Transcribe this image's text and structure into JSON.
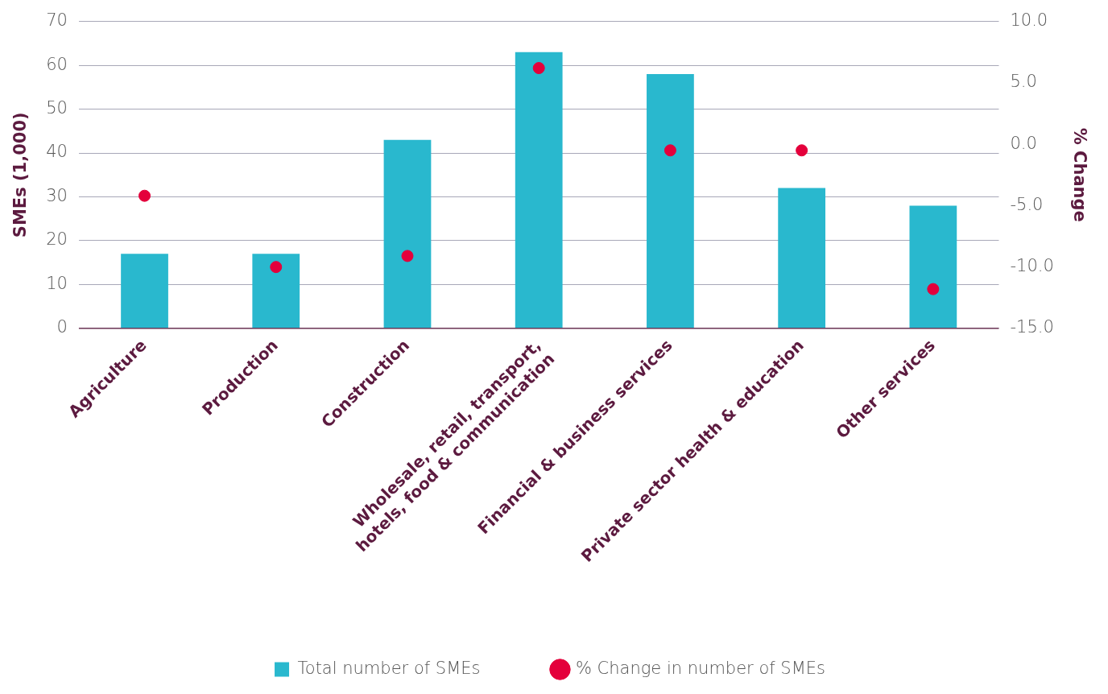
{
  "chart_data": {
    "type": "bar",
    "categories": [
      "Agriculture",
      "Production",
      "Construction",
      "Wholesale, retail, transport, hotels, food & communication",
      "Financial & business services",
      "Private sector health & education",
      "Other services"
    ],
    "ylabel": "SMEs (1,000)",
    "y2label": "% Change",
    "series": [
      {
        "name": "Total number of SMEs",
        "type": "bar",
        "color": "#29b8ce",
        "values": [
          17,
          17,
          43,
          63,
          58,
          32,
          28
        ]
      },
      {
        "name": "% Change in number of SMEs",
        "type": "scatter",
        "axis": "y2",
        "color": "#e4003b",
        "marker": "circle",
        "values": [
          -4.2,
          -10.0,
          -9.1,
          6.2,
          -0.5,
          -0.5,
          -11.8
        ]
      }
    ],
    "ylim": [
      0,
      70
    ],
    "yticks": [
      0,
      10,
      20,
      30,
      40,
      50,
      60,
      70
    ],
    "y2lim": [
      -15,
      10
    ],
    "y2ticks": [
      {
        "value": -15,
        "label": "-15.0"
      },
      {
        "value": -10,
        "label": "-10.0"
      },
      {
        "value": -5,
        "label": "-5.0"
      },
      {
        "value": 0,
        "label": "0.0"
      },
      {
        "value": 5,
        "label": "5.0"
      },
      {
        "value": 10,
        "label": "10.0"
      }
    ],
    "grid": "y",
    "legend": "bottom"
  }
}
